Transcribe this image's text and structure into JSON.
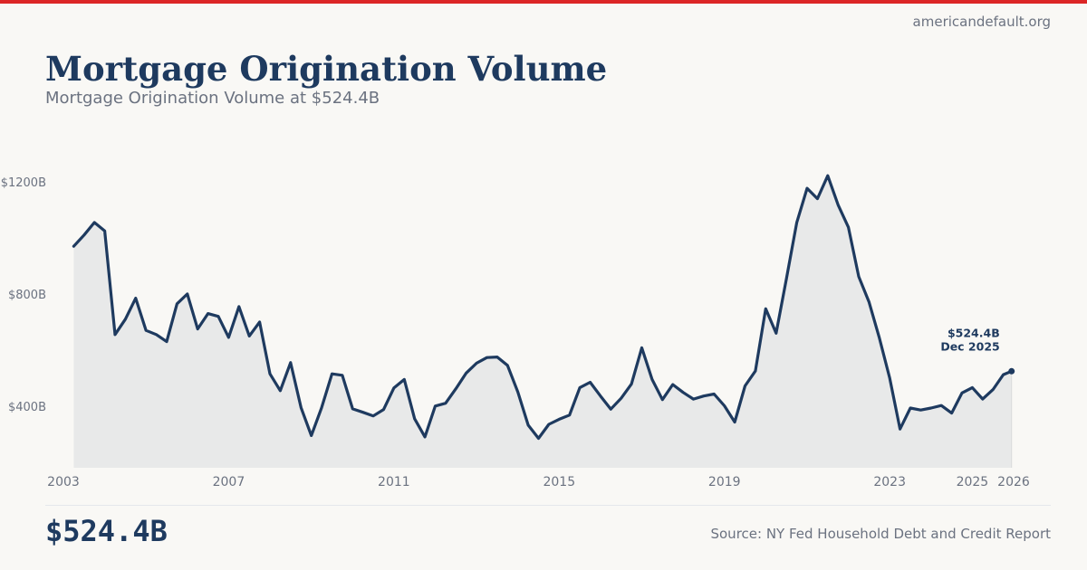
{
  "header": {
    "site": "americandefault.org",
    "title": "Mortgage Origination Volume",
    "subtitle": "Mortgage Origination Volume at $524.4B"
  },
  "footer": {
    "value": "$524.4B",
    "source": "Source: NY Fed Household Debt and Credit Report"
  },
  "colors": {
    "accent_bar": "#dc2626",
    "line": "#1e3a5f",
    "area_fill": "#e8e9e9",
    "axis_text": "#6b7280"
  },
  "chart_data": {
    "type": "area",
    "title": "Mortgage Origination Volume",
    "xlabel": "",
    "ylabel": "",
    "unit": "billions USD",
    "x_range": [
      2003.0,
      2026.0
    ],
    "ylim": [
      180,
      1300
    ],
    "y_ticks": [
      {
        "value": 400,
        "label": "$400B"
      },
      {
        "value": 800,
        "label": "$800B"
      },
      {
        "value": 1200,
        "label": "$1200B"
      }
    ],
    "x_ticks": [
      {
        "value": 2003,
        "label": "2003"
      },
      {
        "value": 2007,
        "label": "2007"
      },
      {
        "value": 2011,
        "label": "2011"
      },
      {
        "value": 2015,
        "label": "2015"
      },
      {
        "value": 2019,
        "label": "2019"
      },
      {
        "value": 2023,
        "label": "2023"
      },
      {
        "value": 2025,
        "label": "2025"
      },
      {
        "value": 2026,
        "label": "2026"
      }
    ],
    "series": [
      {
        "name": "Mortgage Origination Volume",
        "points": [
          [
            2003.25,
            970
          ],
          [
            2003.5,
            1010
          ],
          [
            2003.75,
            1055
          ],
          [
            2004.0,
            1025
          ],
          [
            2004.25,
            655
          ],
          [
            2004.5,
            710
          ],
          [
            2004.75,
            785
          ],
          [
            2005.0,
            670
          ],
          [
            2005.25,
            655
          ],
          [
            2005.5,
            630
          ],
          [
            2005.75,
            765
          ],
          [
            2006.0,
            800
          ],
          [
            2006.25,
            675
          ],
          [
            2006.5,
            730
          ],
          [
            2006.75,
            720
          ],
          [
            2007.0,
            645
          ],
          [
            2007.25,
            755
          ],
          [
            2007.5,
            650
          ],
          [
            2007.75,
            700
          ],
          [
            2008.0,
            515
          ],
          [
            2008.25,
            455
          ],
          [
            2008.5,
            555
          ],
          [
            2008.75,
            395
          ],
          [
            2009.0,
            295
          ],
          [
            2009.25,
            395
          ],
          [
            2009.5,
            515
          ],
          [
            2009.75,
            510
          ],
          [
            2010.0,
            390
          ],
          [
            2010.25,
            378
          ],
          [
            2010.5,
            365
          ],
          [
            2010.75,
            388
          ],
          [
            2011.0,
            465
          ],
          [
            2011.25,
            495
          ],
          [
            2011.5,
            355
          ],
          [
            2011.75,
            290
          ],
          [
            2012.0,
            400
          ],
          [
            2012.25,
            410
          ],
          [
            2012.5,
            462
          ],
          [
            2012.75,
            518
          ],
          [
            2013.0,
            553
          ],
          [
            2013.25,
            573
          ],
          [
            2013.5,
            575
          ],
          [
            2013.75,
            545
          ],
          [
            2014.0,
            450
          ],
          [
            2014.25,
            332
          ],
          [
            2014.5,
            285
          ],
          [
            2014.75,
            335
          ],
          [
            2015.0,
            353
          ],
          [
            2015.25,
            368
          ],
          [
            2015.5,
            466
          ],
          [
            2015.75,
            485
          ],
          [
            2016.0,
            436
          ],
          [
            2016.25,
            389
          ],
          [
            2016.5,
            428
          ],
          [
            2016.75,
            479
          ],
          [
            2017.0,
            608
          ],
          [
            2017.25,
            495
          ],
          [
            2017.5,
            423
          ],
          [
            2017.75,
            477
          ],
          [
            2018.0,
            449
          ],
          [
            2018.25,
            425
          ],
          [
            2018.5,
            436
          ],
          [
            2018.75,
            443
          ],
          [
            2019.0,
            401
          ],
          [
            2019.25,
            343
          ],
          [
            2019.5,
            472
          ],
          [
            2019.75,
            525
          ],
          [
            2020.0,
            747
          ],
          [
            2020.25,
            660
          ],
          [
            2020.5,
            855
          ],
          [
            2020.75,
            1055
          ],
          [
            2021.0,
            1177
          ],
          [
            2021.25,
            1140
          ],
          [
            2021.5,
            1222
          ],
          [
            2021.75,
            1118
          ],
          [
            2022.0,
            1038
          ],
          [
            2022.25,
            862
          ],
          [
            2022.5,
            771
          ],
          [
            2022.75,
            643
          ],
          [
            2023.0,
            500
          ],
          [
            2023.25,
            318
          ],
          [
            2023.5,
            393
          ],
          [
            2023.75,
            386
          ],
          [
            2024.0,
            393
          ],
          [
            2024.25,
            402
          ],
          [
            2024.5,
            375
          ],
          [
            2024.75,
            447
          ],
          [
            2025.0,
            466
          ],
          [
            2025.25,
            425
          ],
          [
            2025.5,
            459
          ],
          [
            2025.75,
            512
          ],
          [
            2025.95,
            524.4
          ]
        ]
      }
    ],
    "annotation": {
      "value_label": "$524.4B",
      "date_label": "Dec 2025",
      "x": 2025.95,
      "y": 524.4
    }
  }
}
